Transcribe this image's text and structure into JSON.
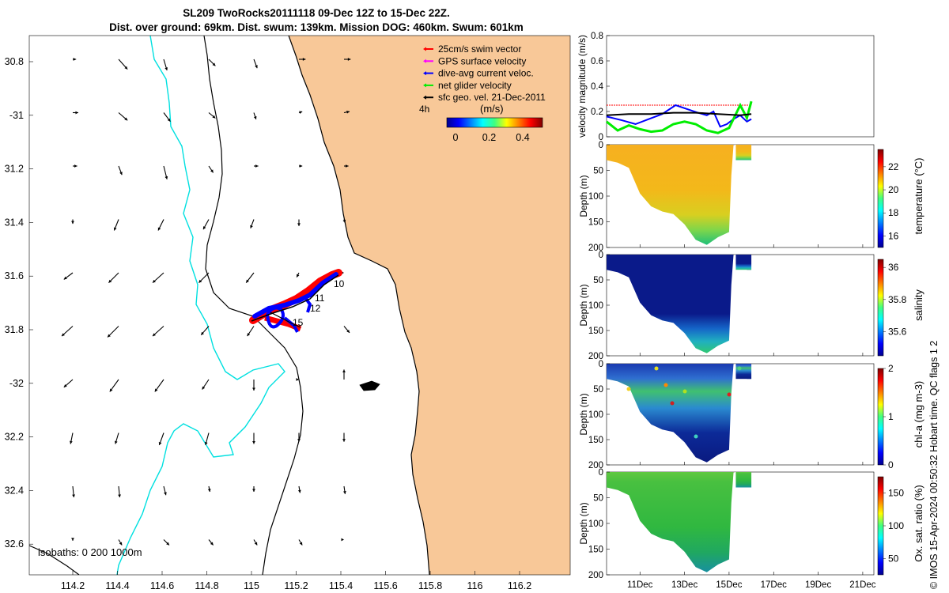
{
  "header": {
    "line1": "SL209 TwoRocks20111118 09-Dec 12Z to 15-Dec 22Z.",
    "line2": "Dist. over ground: 69km. Dist. swum: 139km. Mission DOG: 460km. Swum: 601km"
  },
  "legend": {
    "items": [
      {
        "label": "25cm/s swim vector",
        "color": "#ff0000"
      },
      {
        "label": "GPS surface velocity",
        "color": "#ff00ff"
      },
      {
        "label": "dive-avg current veloc.",
        "color": "#0000ff"
      },
      {
        "label": "net glider velocity",
        "color": "#00ee00"
      },
      {
        "label": "sfc geo. vel. 21-Dec-2011",
        "color": "#000000"
      }
    ],
    "colorbar_title": "(m/s)",
    "colorbar_ticks": [
      "0",
      "0.2",
      "0.4"
    ],
    "time_label": "4h"
  },
  "map": {
    "lon_ticks": [
      "114.2",
      "114.4",
      "114.6",
      "114.8",
      "115",
      "115.2",
      "115.4",
      "115.6",
      "115.8",
      "116",
      "116.2"
    ],
    "lat_ticks": [
      "30.8",
      "-31",
      "31.2",
      "31.4",
      "31.6",
      "31.8",
      "-32",
      "32.2",
      "32.4",
      "32.6"
    ],
    "isobaths_label": "isobaths: 0   200  1000m",
    "track_labels": [
      "10",
      "11",
      "12",
      "15"
    ],
    "colors": {
      "land": "#f8c898",
      "ocean": "#ffffff",
      "isobath_1000": "#00e0e0",
      "coast": "#000000"
    }
  },
  "chart_data": [
    {
      "type": "line",
      "title": "",
      "ylabel": "velocity magnitude (m/s)",
      "ylim": [
        0,
        0.8
      ],
      "y_ticks": [
        "0",
        "0.2",
        "0.4",
        "0.6",
        "0.8"
      ],
      "x_range_days": [
        9.5,
        21.5
      ],
      "series": [
        {
          "name": "25cm/s swim vector",
          "color": "#ff0000",
          "x": [
            9.5,
            15.9
          ],
          "values": [
            0.25,
            0.25
          ]
        },
        {
          "name": "dive-avg current veloc.",
          "color": "#0000ff",
          "x": [
            9.5,
            10.2,
            10.8,
            11.4,
            12.0,
            12.6,
            13.1,
            13.6,
            14.0,
            14.3,
            14.6,
            14.9,
            15.2,
            15.5,
            15.8,
            16.0
          ],
          "values": [
            0.16,
            0.13,
            0.1,
            0.14,
            0.18,
            0.25,
            0.22,
            0.19,
            0.17,
            0.2,
            0.08,
            0.1,
            0.14,
            0.17,
            0.12,
            0.14
          ]
        },
        {
          "name": "net glider velocity",
          "color": "#00ee00",
          "x": [
            9.5,
            10.0,
            10.5,
            11.0,
            11.5,
            12.0,
            12.5,
            13.0,
            13.5,
            14.0,
            14.5,
            15.0,
            15.5,
            15.8,
            16.0
          ],
          "values": [
            0.12,
            0.05,
            0.09,
            0.06,
            0.04,
            0.05,
            0.1,
            0.12,
            0.1,
            0.05,
            0.03,
            0.07,
            0.25,
            0.15,
            0.28
          ]
        },
        {
          "name": "sfc geo. vel. 21-Dec-2011",
          "color": "#000000",
          "x": [
            9.5,
            10.5,
            11.5,
            12.5,
            13.5,
            14.5,
            15.5,
            16.0
          ],
          "values": [
            0.17,
            0.18,
            0.18,
            0.19,
            0.19,
            0.18,
            0.17,
            0.18
          ]
        }
      ]
    },
    {
      "type": "heatmap",
      "ylabel": "Depth (m)",
      "colorbar_label": "temperature (°C)",
      "colorbar_ticks": [
        "16",
        "18",
        "20",
        "22"
      ],
      "clim": [
        15,
        23.5
      ],
      "ylim": [
        200,
        0
      ],
      "y_ticks": [
        "0",
        "50",
        "100",
        "150",
        "200"
      ],
      "max_depth_profile_days": [
        9.5,
        10.0,
        10.5,
        11.0,
        11.5,
        12.0,
        12.5,
        13.0,
        13.5,
        14.0,
        14.5,
        15.0,
        15.1,
        15.2,
        15.4,
        15.6,
        15.8,
        16.0
      ],
      "max_depth_profile_m": [
        30,
        35,
        45,
        95,
        120,
        130,
        135,
        155,
        185,
        195,
        180,
        170,
        60,
        0,
        0,
        0,
        30,
        30
      ]
    },
    {
      "type": "heatmap",
      "ylabel": "Depth (m)",
      "colorbar_label": "salinity",
      "colorbar_ticks": [
        "35.6",
        "35.8",
        "36"
      ],
      "clim": [
        35.45,
        36.05
      ],
      "ylim": [
        200,
        0
      ],
      "y_ticks": [
        "0",
        "50",
        "100",
        "150",
        "200"
      ]
    },
    {
      "type": "heatmap",
      "ylabel": "Depth (m)",
      "colorbar_label": "chl-a (mg m-3)",
      "colorbar_ticks": [
        "0",
        "1",
        "2"
      ],
      "clim": [
        0,
        2
      ],
      "ylim": [
        200,
        0
      ],
      "y_ticks": [
        "0",
        "50",
        "100",
        "150",
        "200"
      ]
    },
    {
      "type": "heatmap",
      "ylabel": "Depth (m)",
      "colorbar_label": "Ox. sat. ratio (%)",
      "colorbar_ticks": [
        "50",
        "100",
        "150"
      ],
      "clim": [
        25,
        175
      ],
      "ylim": [
        200,
        0
      ],
      "y_ticks": [
        "0",
        "50",
        "100",
        "150",
        "200"
      ],
      "x_ticks": [
        "11Dec",
        "13Dec",
        "15Dec",
        "17Dec",
        "19Dec",
        "21Dec"
      ]
    }
  ],
  "credit": "© IMOS 15-Apr-2024 00:50:32 Hobart time. QC flags 1  2"
}
